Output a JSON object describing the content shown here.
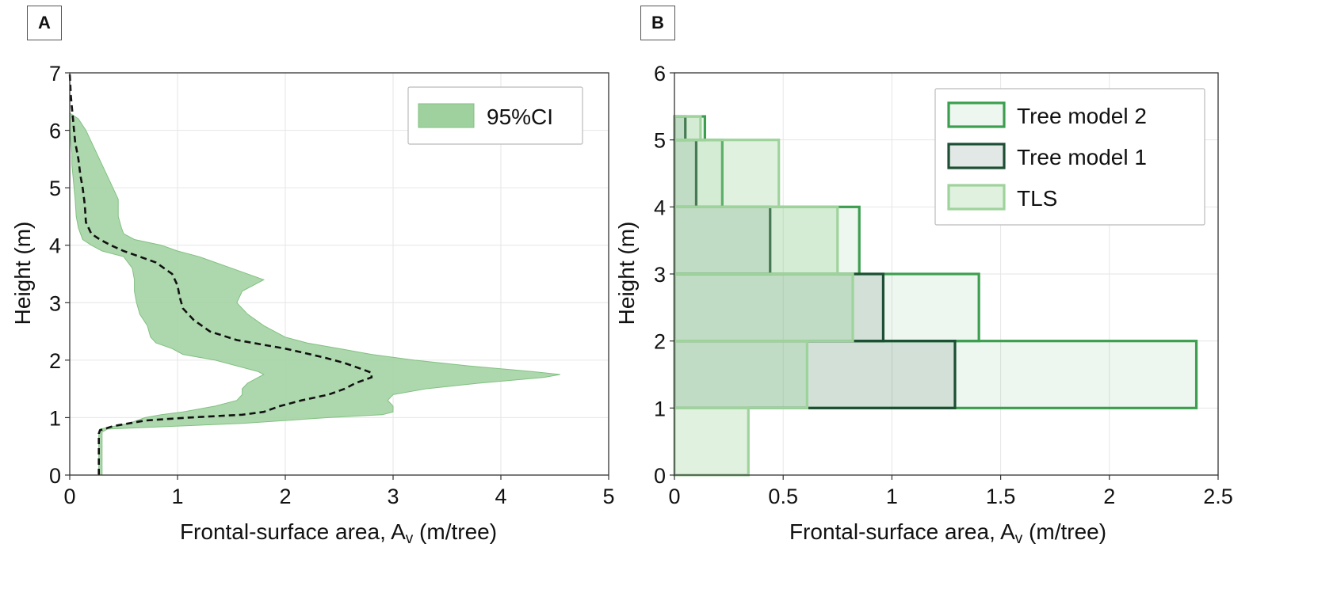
{
  "panels": {
    "a": {
      "label": "A"
    },
    "b": {
      "label": "B"
    }
  },
  "colors": {
    "ci_fill": "#9fd19f",
    "ci_edge": "#82c082",
    "tree_model_2": "#3c9f4f",
    "tree_model_1": "#1c4f33",
    "tls": "#9fd39c",
    "grid": "#e6e6e6"
  },
  "chart_data": [
    {
      "panel": "A",
      "type": "area",
      "xlabel_main": "Frontal-surface area, A",
      "xlabel_sub": "v",
      "xlabel_unit": " (m/tree)",
      "ylabel": "Height (m)",
      "xlim": [
        0,
        5
      ],
      "ylim": [
        0,
        7
      ],
      "xticks": [
        0,
        1,
        2,
        3,
        4,
        5
      ],
      "yticks": [
        0,
        1,
        2,
        3,
        4,
        5,
        6,
        7
      ],
      "legend": {
        "position": "top-right",
        "entries": [
          "95%CI"
        ]
      },
      "ci_band": {
        "height": [
          0.0,
          0.3,
          0.75,
          0.8,
          0.9,
          1.0,
          1.05,
          1.1,
          1.2,
          1.3,
          1.4,
          1.5,
          1.6,
          1.7,
          1.75,
          1.8,
          1.9,
          2.0,
          2.1,
          2.2,
          2.3,
          2.4,
          2.6,
          2.8,
          3.0,
          3.2,
          3.4,
          3.6,
          3.8,
          3.9,
          4.0,
          4.1,
          4.2,
          4.3,
          4.5,
          4.8,
          5.0,
          5.2,
          5.4,
          5.6,
          5.8,
          6.0,
          6.2,
          6.3
        ],
        "lower": [
          0.27,
          0.27,
          0.27,
          0.28,
          0.55,
          0.7,
          0.85,
          1.05,
          1.35,
          1.55,
          1.6,
          1.6,
          1.65,
          1.75,
          1.8,
          1.75,
          1.55,
          1.35,
          1.05,
          0.95,
          0.8,
          0.75,
          0.72,
          0.65,
          0.62,
          0.6,
          0.6,
          0.58,
          0.5,
          0.3,
          0.2,
          0.12,
          0.1,
          0.08,
          0.06,
          0.05,
          0.04,
          0.03,
          0.02,
          0.02,
          0.01,
          0.0,
          0.0,
          0.0
        ],
        "upper": [
          0.3,
          0.3,
          0.3,
          0.35,
          1.6,
          2.4,
          2.9,
          3.0,
          3.0,
          2.95,
          3.0,
          3.3,
          3.8,
          4.4,
          4.55,
          4.3,
          3.7,
          3.2,
          2.8,
          2.5,
          2.2,
          2.0,
          1.8,
          1.65,
          1.55,
          1.6,
          1.8,
          1.5,
          1.2,
          1.0,
          0.85,
          0.6,
          0.5,
          0.48,
          0.45,
          0.45,
          0.4,
          0.35,
          0.3,
          0.25,
          0.2,
          0.15,
          0.08,
          0.0
        ]
      },
      "mean_line": {
        "height": [
          0.0,
          0.3,
          0.72,
          0.78,
          0.85,
          0.9,
          0.95,
          1.0,
          1.05,
          1.1,
          1.2,
          1.3,
          1.4,
          1.5,
          1.6,
          1.7,
          1.78,
          1.85,
          1.95,
          2.05,
          2.2,
          2.35,
          2.5,
          2.7,
          2.9,
          3.1,
          3.3,
          3.5,
          3.7,
          3.8,
          3.9,
          4.0,
          4.1,
          4.2,
          4.4,
          4.7,
          5.0,
          5.2,
          5.5,
          5.8,
          6.0,
          6.2,
          6.4,
          6.6,
          7.0
        ],
        "area": [
          0.27,
          0.27,
          0.27,
          0.28,
          0.4,
          0.55,
          0.7,
          1.1,
          1.6,
          1.8,
          1.95,
          2.15,
          2.4,
          2.55,
          2.65,
          2.8,
          2.8,
          2.7,
          2.55,
          2.35,
          2.0,
          1.55,
          1.3,
          1.15,
          1.05,
          1.02,
          1.0,
          0.95,
          0.8,
          0.65,
          0.5,
          0.38,
          0.28,
          0.2,
          0.15,
          0.14,
          0.12,
          0.1,
          0.08,
          0.05,
          0.04,
          0.03,
          0.02,
          0.01,
          0.0
        ]
      }
    },
    {
      "panel": "B",
      "type": "bar",
      "orientation": "horizontal",
      "xlabel_main": "Frontal-surface area, A",
      "xlabel_sub": "v",
      "xlabel_unit": " (m/tree)",
      "ylabel": "Height (m)",
      "xlim": [
        0,
        2.5
      ],
      "ylim": [
        0,
        6
      ],
      "xticks": [
        0,
        0.5,
        1,
        1.5,
        2,
        2.5
      ],
      "xtick_labels": [
        "0",
        "0.5",
        "1",
        "1.5",
        "2",
        "2.5"
      ],
      "yticks": [
        0,
        1,
        2,
        3,
        4,
        5,
        6
      ],
      "legend": {
        "position": "top-right",
        "entries": [
          "Tree model 2",
          "Tree model 1",
          "TLS"
        ]
      },
      "bins": [
        [
          0,
          1
        ],
        [
          1,
          2
        ],
        [
          2,
          3
        ],
        [
          3,
          4
        ],
        [
          4,
          5
        ],
        [
          5,
          5.35
        ]
      ],
      "series": [
        {
          "name": "Tree model 2",
          "values": [
            0,
            2.4,
            1.4,
            0.85,
            0.22,
            0.14
          ]
        },
        {
          "name": "Tree model 1",
          "values": [
            0,
            1.29,
            0.96,
            0.44,
            0.1,
            0.05
          ]
        },
        {
          "name": "TLS",
          "values": [
            0.34,
            0.61,
            0.82,
            0.75,
            0.48,
            0.12
          ]
        }
      ]
    }
  ]
}
